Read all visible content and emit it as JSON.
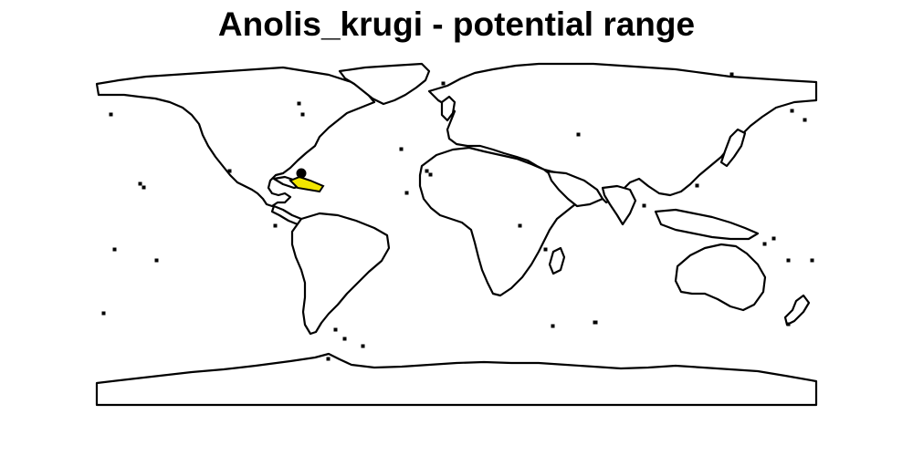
{
  "map": {
    "title": "Anolis_krugi - potential range",
    "colors": {
      "background": "#ffffff",
      "outline": "#000000",
      "range_fill": "#f2e600"
    },
    "legend": null
  }
}
